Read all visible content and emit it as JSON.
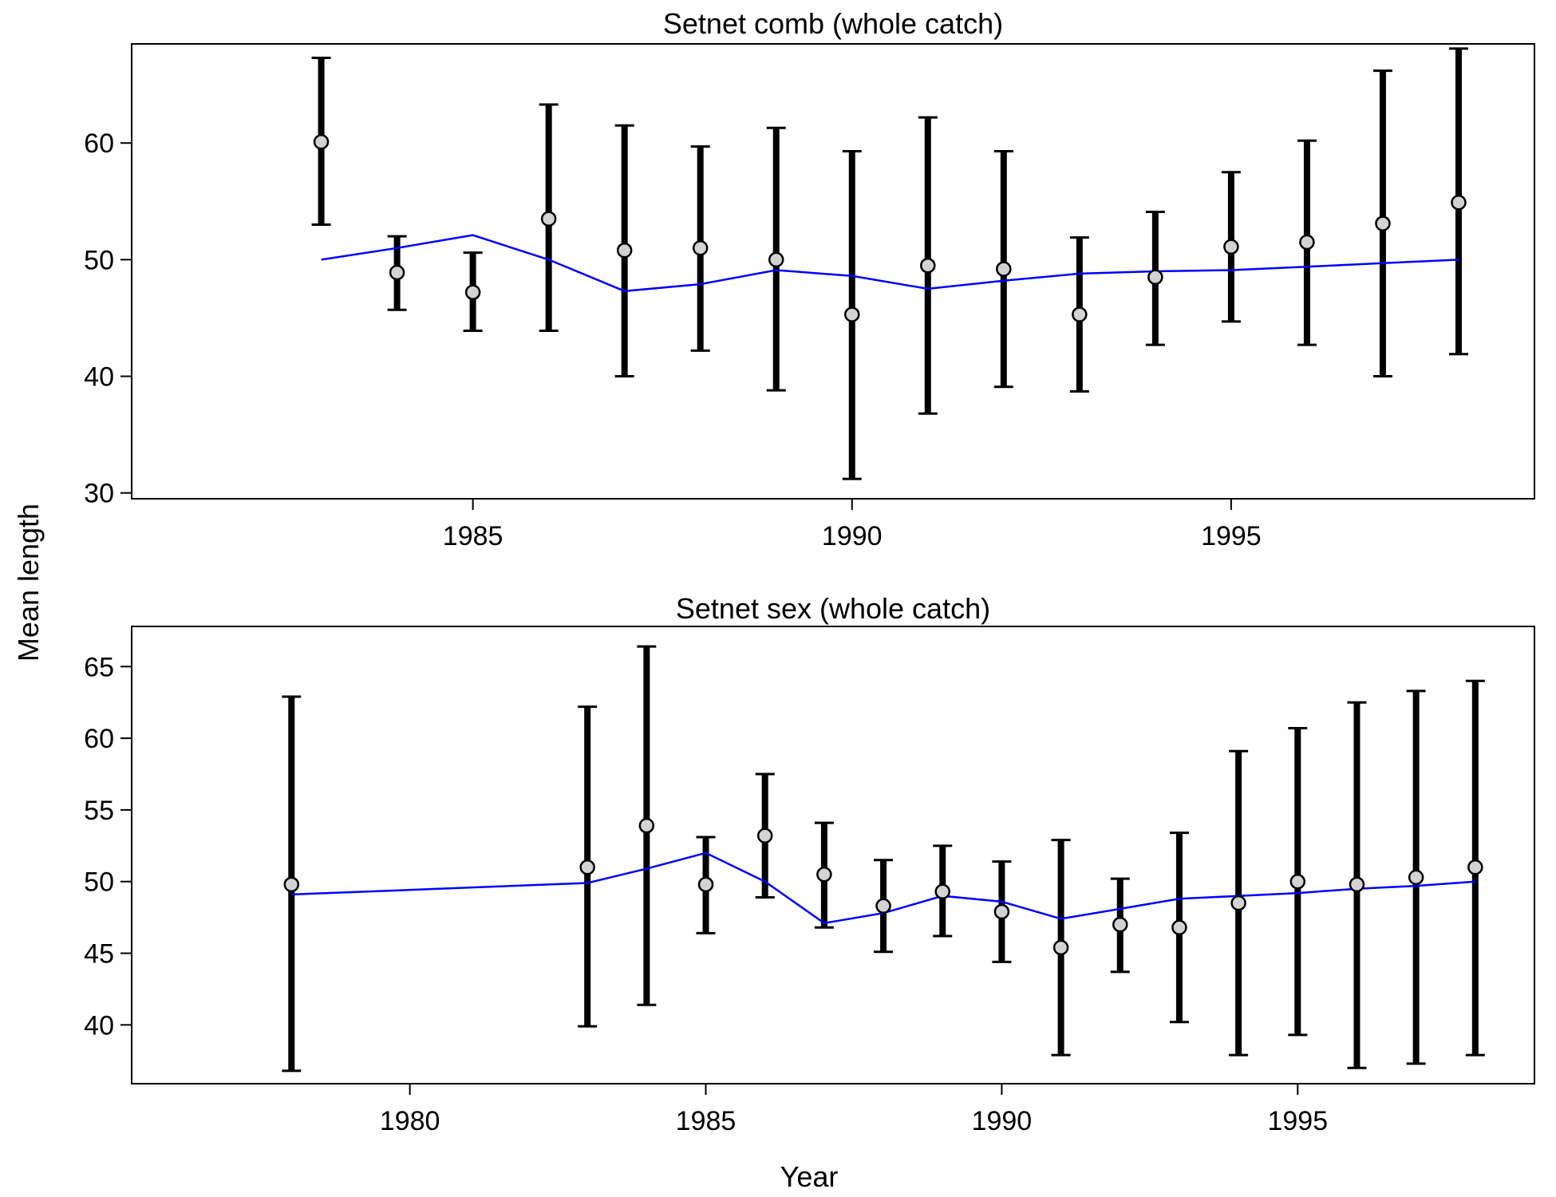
{
  "figure": {
    "ylabel": "Mean length",
    "xlabel": "Year"
  },
  "chart_data": [
    {
      "type": "line",
      "title": "Setnet comb (whole catch)",
      "xlim": [
        1980.5,
        1999.0
      ],
      "ylim": [
        29.5,
        68.5
      ],
      "xticks": [
        1985,
        1990,
        1995
      ],
      "yticks": [
        30,
        40,
        50,
        60
      ],
      "x": [
        1983,
        1984,
        1985,
        1986,
        1987,
        1988,
        1989,
        1990,
        1991,
        1992,
        1993,
        1994,
        1995,
        1996,
        1997,
        1998
      ],
      "observed": [
        60.1,
        48.9,
        47.2,
        53.5,
        50.8,
        51.0,
        50.0,
        45.3,
        49.5,
        49.2,
        45.3,
        48.5,
        51.1,
        51.5,
        53.1,
        54.9
      ],
      "lower": [
        53.0,
        45.7,
        43.9,
        43.9,
        40.0,
        42.2,
        38.8,
        31.2,
        36.8,
        39.1,
        38.7,
        42.7,
        44.7,
        42.7,
        40.0,
        41.9
      ],
      "upper": [
        67.3,
        52.0,
        50.6,
        63.3,
        61.5,
        59.7,
        61.3,
        59.3,
        62.2,
        59.3,
        51.9,
        54.1,
        57.5,
        60.2,
        66.2,
        68.1
      ],
      "expected": [
        50.0,
        51.0,
        52.1,
        50.0,
        47.3,
        47.9,
        49.1,
        48.6,
        47.5,
        48.2,
        48.8,
        49.0,
        49.1,
        49.4,
        49.7,
        50.0
      ],
      "colors": {
        "expected_line": "#0000ff",
        "errorbar": "#000000",
        "marker_fill": "#d3d3d3"
      }
    },
    {
      "type": "line",
      "title": "Setnet sex (whole catch)",
      "xlim": [
        1975.3,
        1999.0
      ],
      "ylim": [
        35.9,
        67.8
      ],
      "xticks": [
        1980,
        1985,
        1990,
        1995
      ],
      "yticks": [
        40,
        45,
        50,
        55,
        60,
        65
      ],
      "x": [
        1978,
        1983,
        1984,
        1985,
        1986,
        1987,
        1988,
        1989,
        1990,
        1991,
        1992,
        1993,
        1994,
        1995,
        1996,
        1997,
        1998
      ],
      "observed": [
        49.8,
        51.0,
        53.9,
        49.8,
        53.2,
        50.5,
        48.3,
        49.3,
        47.9,
        45.4,
        47.0,
        46.8,
        48.5,
        50.0,
        49.8,
        50.3,
        51.0
      ],
      "lower": [
        36.8,
        39.9,
        41.4,
        46.4,
        48.9,
        46.8,
        45.1,
        46.2,
        44.4,
        37.9,
        43.7,
        40.2,
        37.9,
        39.3,
        37.0,
        37.3,
        37.9
      ],
      "upper": [
        62.9,
        62.2,
        66.4,
        53.1,
        57.5,
        54.1,
        51.5,
        52.5,
        51.4,
        52.9,
        50.2,
        53.4,
        59.1,
        60.7,
        62.5,
        63.3,
        64.0
      ],
      "expected": [
        49.1,
        49.9,
        50.9,
        52.0,
        50.0,
        47.1,
        47.8,
        49.0,
        48.6,
        47.4,
        48.1,
        48.8,
        49.0,
        49.2,
        49.5,
        49.7,
        50.0
      ],
      "colors": {
        "expected_line": "#0000ff",
        "errorbar": "#000000",
        "marker_fill": "#d3d3d3"
      }
    }
  ]
}
